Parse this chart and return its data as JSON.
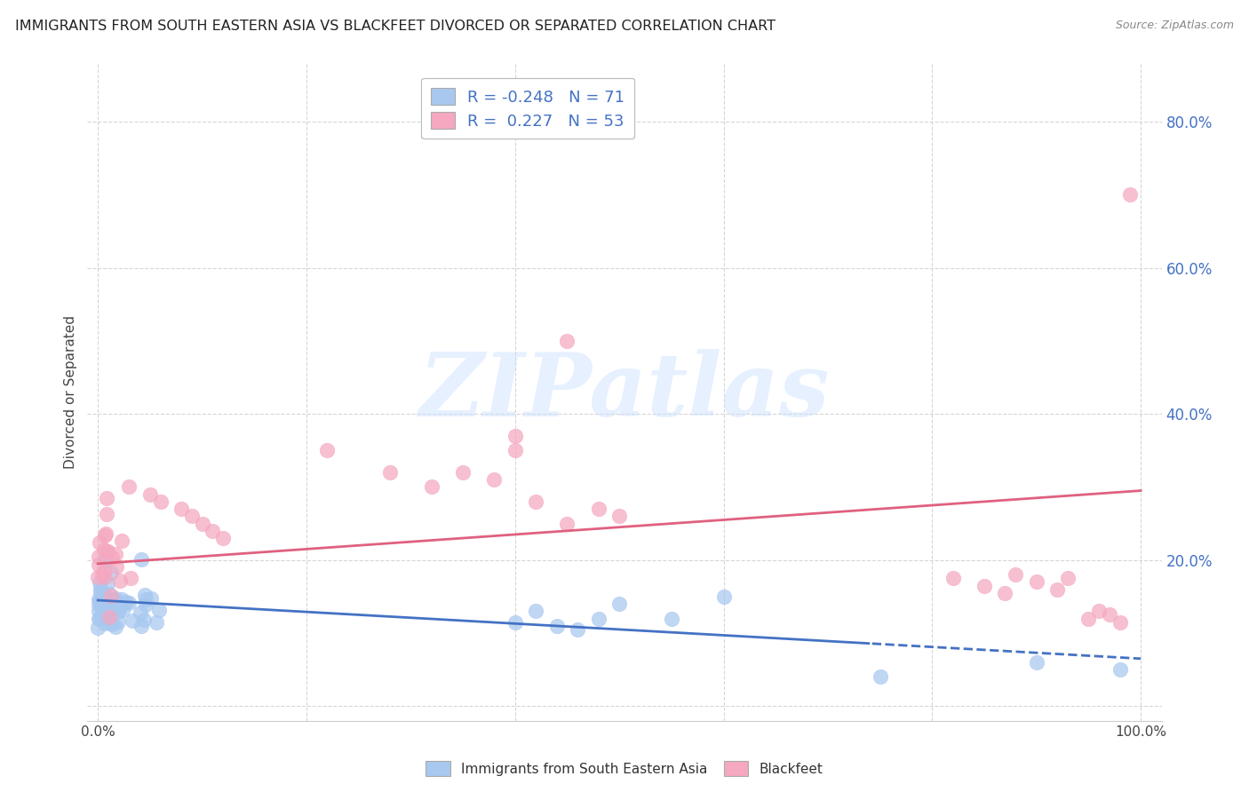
{
  "title": "IMMIGRANTS FROM SOUTH EASTERN ASIA VS BLACKFEET DIVORCED OR SEPARATED CORRELATION CHART",
  "source": "Source: ZipAtlas.com",
  "ylabel": "Divorced or Separated",
  "xlim": [
    -0.01,
    1.02
  ],
  "ylim": [
    -0.02,
    0.88
  ],
  "blue_R": -0.248,
  "blue_N": 71,
  "pink_R": 0.227,
  "pink_N": 53,
  "blue_color": "#A8C8F0",
  "pink_color": "#F5A8C0",
  "blue_line_color": "#4472C4",
  "pink_line_color": "#E06080",
  "legend_label_blue": "Immigrants from South Eastern Asia",
  "legend_label_pink": "Blackfeet",
  "watermark_text": "ZIPatlas",
  "background_color": "#FFFFFF",
  "grid_color": "#CCCCCC",
  "blue_trend_start_y": 0.145,
  "blue_trend_end_y": 0.065,
  "pink_trend_start_y": 0.195,
  "pink_trend_end_y": 0.295,
  "dashed_cutoff": 0.74,
  "right_ytick_values": [
    0.0,
    0.2,
    0.4,
    0.6,
    0.8
  ],
  "right_yticklabels": [
    "",
    "20.0%",
    "40.0%",
    "60.0%",
    "80.0%"
  ],
  "xtick_positions": [
    0.0,
    0.2,
    0.4,
    0.6,
    0.8,
    1.0
  ],
  "xtick_labels_show": [
    "0.0%",
    "",
    "",
    "",
    "",
    "100.0%"
  ]
}
